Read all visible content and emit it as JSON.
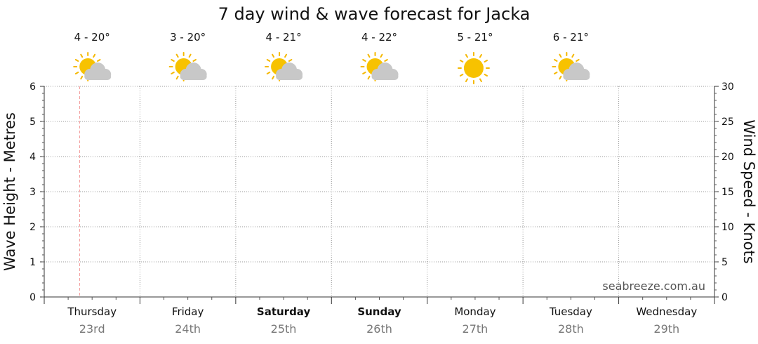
{
  "chart_data": {
    "type": "line",
    "title": "7 day wind & wave forecast for Jacka",
    "y_left_label": "Wave Height - Metres",
    "y_right_label": "Wind Speed - Knots",
    "y_left_range": [
      0,
      6
    ],
    "y_right_range": [
      0,
      30
    ],
    "y_left_ticks": [
      "0",
      "1",
      "2",
      "3",
      "4",
      "5",
      "6"
    ],
    "y_right_ticks": [
      "0",
      "5",
      "10",
      "15",
      "20",
      "25",
      "30"
    ],
    "grid": true,
    "days": [
      {
        "day": "Thursday",
        "date": "23rd",
        "temp": "4 - 20°",
        "weather": "partly-cloudy-icon",
        "bold": false
      },
      {
        "day": "Friday",
        "date": "24th",
        "temp": "3 - 20°",
        "weather": "partly-cloudy-icon",
        "bold": false
      },
      {
        "day": "Saturday",
        "date": "25th",
        "temp": "4 - 21°",
        "weather": "partly-cloudy-icon",
        "bold": true
      },
      {
        "day": "Sunday",
        "date": "26th",
        "temp": "4 - 22°",
        "weather": "partly-cloudy-icon",
        "bold": true
      },
      {
        "day": "Monday",
        "date": "27th",
        "temp": "5 - 21°",
        "weather": "sunny-icon",
        "bold": false
      },
      {
        "day": "Tuesday",
        "date": "28th",
        "temp": "6 - 21°",
        "weather": "partly-cloudy-icon",
        "bold": false
      },
      {
        "day": "Wednesday",
        "date": "29th",
        "temp": "",
        "weather": "",
        "bold": false
      }
    ],
    "series": [],
    "now_marker": "current-time-line"
  },
  "watermark": "seabreeze.com.au",
  "colors": {
    "sun": "#f7c200",
    "sun_rays": "#f5b800",
    "cloud": "#c8c8c8",
    "now_line": "#f4a0a0",
    "grid": "#9a9a9a"
  }
}
